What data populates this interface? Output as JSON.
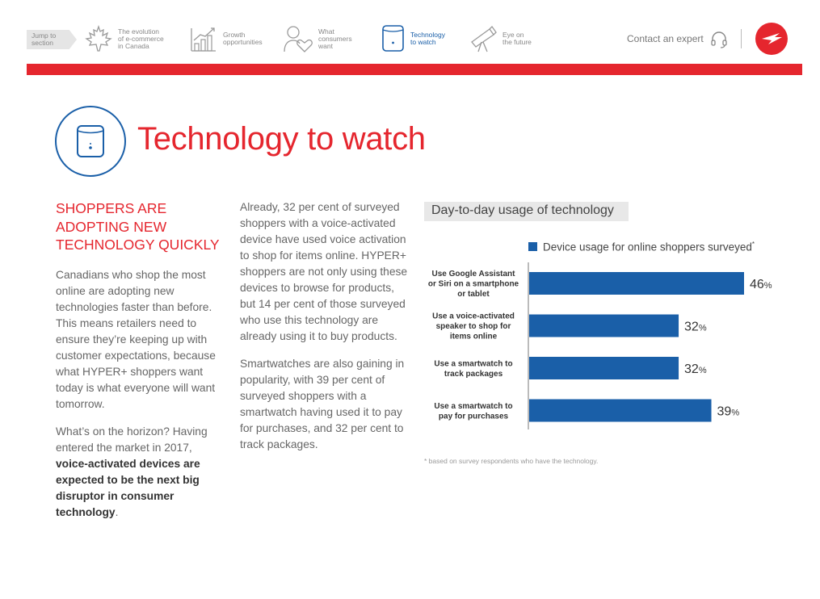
{
  "nav": {
    "jump_label": "Jump to\nsection",
    "items": [
      {
        "label": "The evolution\nof e-commerce\nin Canada",
        "icon": "maple-leaf-icon"
      },
      {
        "label": "Growth\nopportunities",
        "icon": "growth-chart-icon"
      },
      {
        "label": "What\nconsumers\nwant",
        "icon": "consumer-heart-icon"
      },
      {
        "label": "Technology\nto watch",
        "icon": "smart-speaker-icon",
        "active": true
      },
      {
        "label": "Eye on\nthe future",
        "icon": "telescope-icon"
      }
    ],
    "contact": "Contact an expert"
  },
  "colors": {
    "accent_red": "#e5262e",
    "accent_blue": "#1a5fa8"
  },
  "page": {
    "title": "Technology to watch",
    "subhead": "SHOPPERS ARE ADOPTING NEW TECHNOLOGY QUICKLY",
    "col1_p1": "Canadians who shop the most online are adopting new technologies faster than before. This means retailers need to ensure they’re keeping up with customer expectations, because what HYPER+ shoppers want today is what everyone will want tomorrow.",
    "col1_p2_plain": "What’s on the horizon? Having entered the market in 2017, ",
    "col1_p2_bold": "voice-activated devices are expected to be the next big disruptor in consumer technology",
    "col1_p2_end": ".",
    "col2_p1": "Already, 32 per cent of surveyed shoppers with a voice-activated device have used voice activation to shop for items online. HYPER+ shoppers are not only using these devices to browse for products, but 14 per cent of those surveyed who use this technology are already using it to buy products.",
    "col2_p2": "Smartwatches are also gaining in popularity, with 39 per cent of surveyed shoppers with a smartwatch having used it to pay for purchases, and 32 per cent to track packages."
  },
  "chart_data": {
    "type": "bar",
    "orientation": "horizontal",
    "title": "Day-to-day usage of technology",
    "legend": "Device usage for online shoppers surveyed",
    "legend_mark": "*",
    "categories": [
      "Use Google Assistant\nor Siri on a smartphone\nor tablet",
      "Use a voice-activated\nspeaker to shop for\nitems online",
      "Use a smartwatch to\ntrack packages",
      "Use a smartwatch to\npay for purchases"
    ],
    "series": [
      {
        "name": "Device usage for online shoppers surveyed",
        "values": [
          46,
          32,
          32,
          39
        ]
      }
    ],
    "value_suffix": "%",
    "xlim": [
      0,
      46
    ],
    "footnote": "* based on survey respondents who have the technology."
  }
}
